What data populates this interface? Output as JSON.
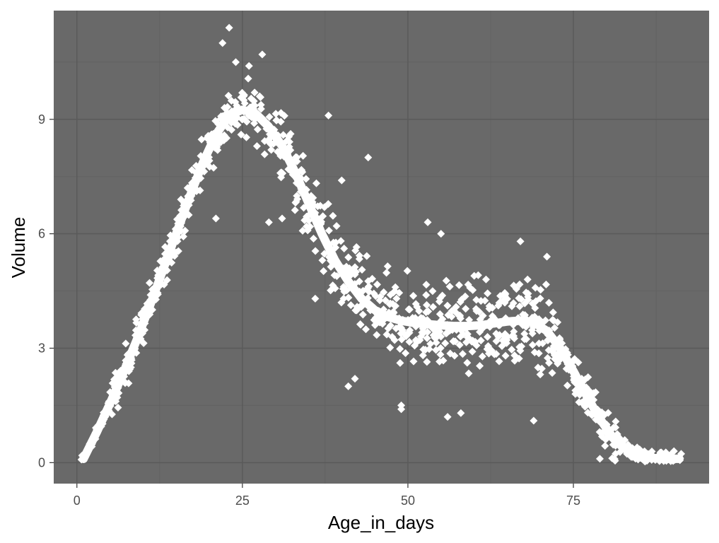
{
  "chart_data": {
    "type": "scatter",
    "title": "",
    "xlabel": "Age_in_days",
    "ylabel": "Volume",
    "xlim": [
      -3.5,
      95.5
    ],
    "ylim": [
      -0.55,
      11.85
    ],
    "x_ticks": [
      0,
      25,
      50,
      75
    ],
    "x_tick_labels": [
      "0",
      "25",
      "50",
      "75"
    ],
    "y_ticks": [
      0,
      3,
      6,
      9
    ],
    "y_tick_labels": [
      "0",
      "3",
      "6",
      "9"
    ],
    "x_minor": [
      12.5,
      37.5,
      62.5,
      87.5
    ],
    "y_minor": [
      1.5,
      4.5,
      7.5,
      10.5
    ],
    "grid": true,
    "legend": "none",
    "colors": {
      "panel": "#696969",
      "grid_major": "#5a5a5a",
      "grid_minor": "#626262",
      "points": "#ffffff",
      "smooth": "#ffffff"
    },
    "marker": "diamond",
    "smooth_line": {
      "x": [
        1,
        3,
        5,
        7,
        9,
        11,
        13,
        15,
        17,
        19,
        21,
        23,
        25,
        27,
        29,
        31,
        33,
        35,
        37,
        39,
        41,
        43,
        45,
        47,
        49,
        51,
        53,
        55,
        57,
        59,
        61,
        63,
        65,
        67,
        69,
        71,
        73,
        75,
        77,
        79,
        81,
        83,
        85,
        87,
        89,
        91
      ],
      "y": [
        0.1,
        0.8,
        1.55,
        2.35,
        3.2,
        4.1,
        5.05,
        6.0,
        6.95,
        7.85,
        8.6,
        9.1,
        9.25,
        9.15,
        8.8,
        8.3,
        7.6,
        6.8,
        6.0,
        5.3,
        4.75,
        4.3,
        4.0,
        3.82,
        3.72,
        3.66,
        3.63,
        3.6,
        3.58,
        3.58,
        3.6,
        3.65,
        3.7,
        3.72,
        3.68,
        3.45,
        3.0,
        2.4,
        1.75,
        1.15,
        0.65,
        0.35,
        0.2,
        0.12,
        0.1,
        0.1
      ]
    },
    "outliers": {
      "x": [
        23,
        22,
        28,
        24,
        26,
        38,
        44,
        41,
        42,
        49,
        49,
        56,
        58,
        69,
        67,
        71,
        79,
        53,
        55,
        40,
        36,
        29,
        21,
        31
      ],
      "y": [
        11.4,
        11.0,
        10.7,
        10.5,
        10.4,
        9.1,
        8.0,
        2.0,
        2.2,
        1.5,
        1.4,
        1.2,
        1.3,
        1.1,
        5.8,
        5.4,
        0.1,
        6.3,
        6.0,
        7.4,
        4.3,
        6.3,
        6.4,
        6.4
      ]
    }
  }
}
